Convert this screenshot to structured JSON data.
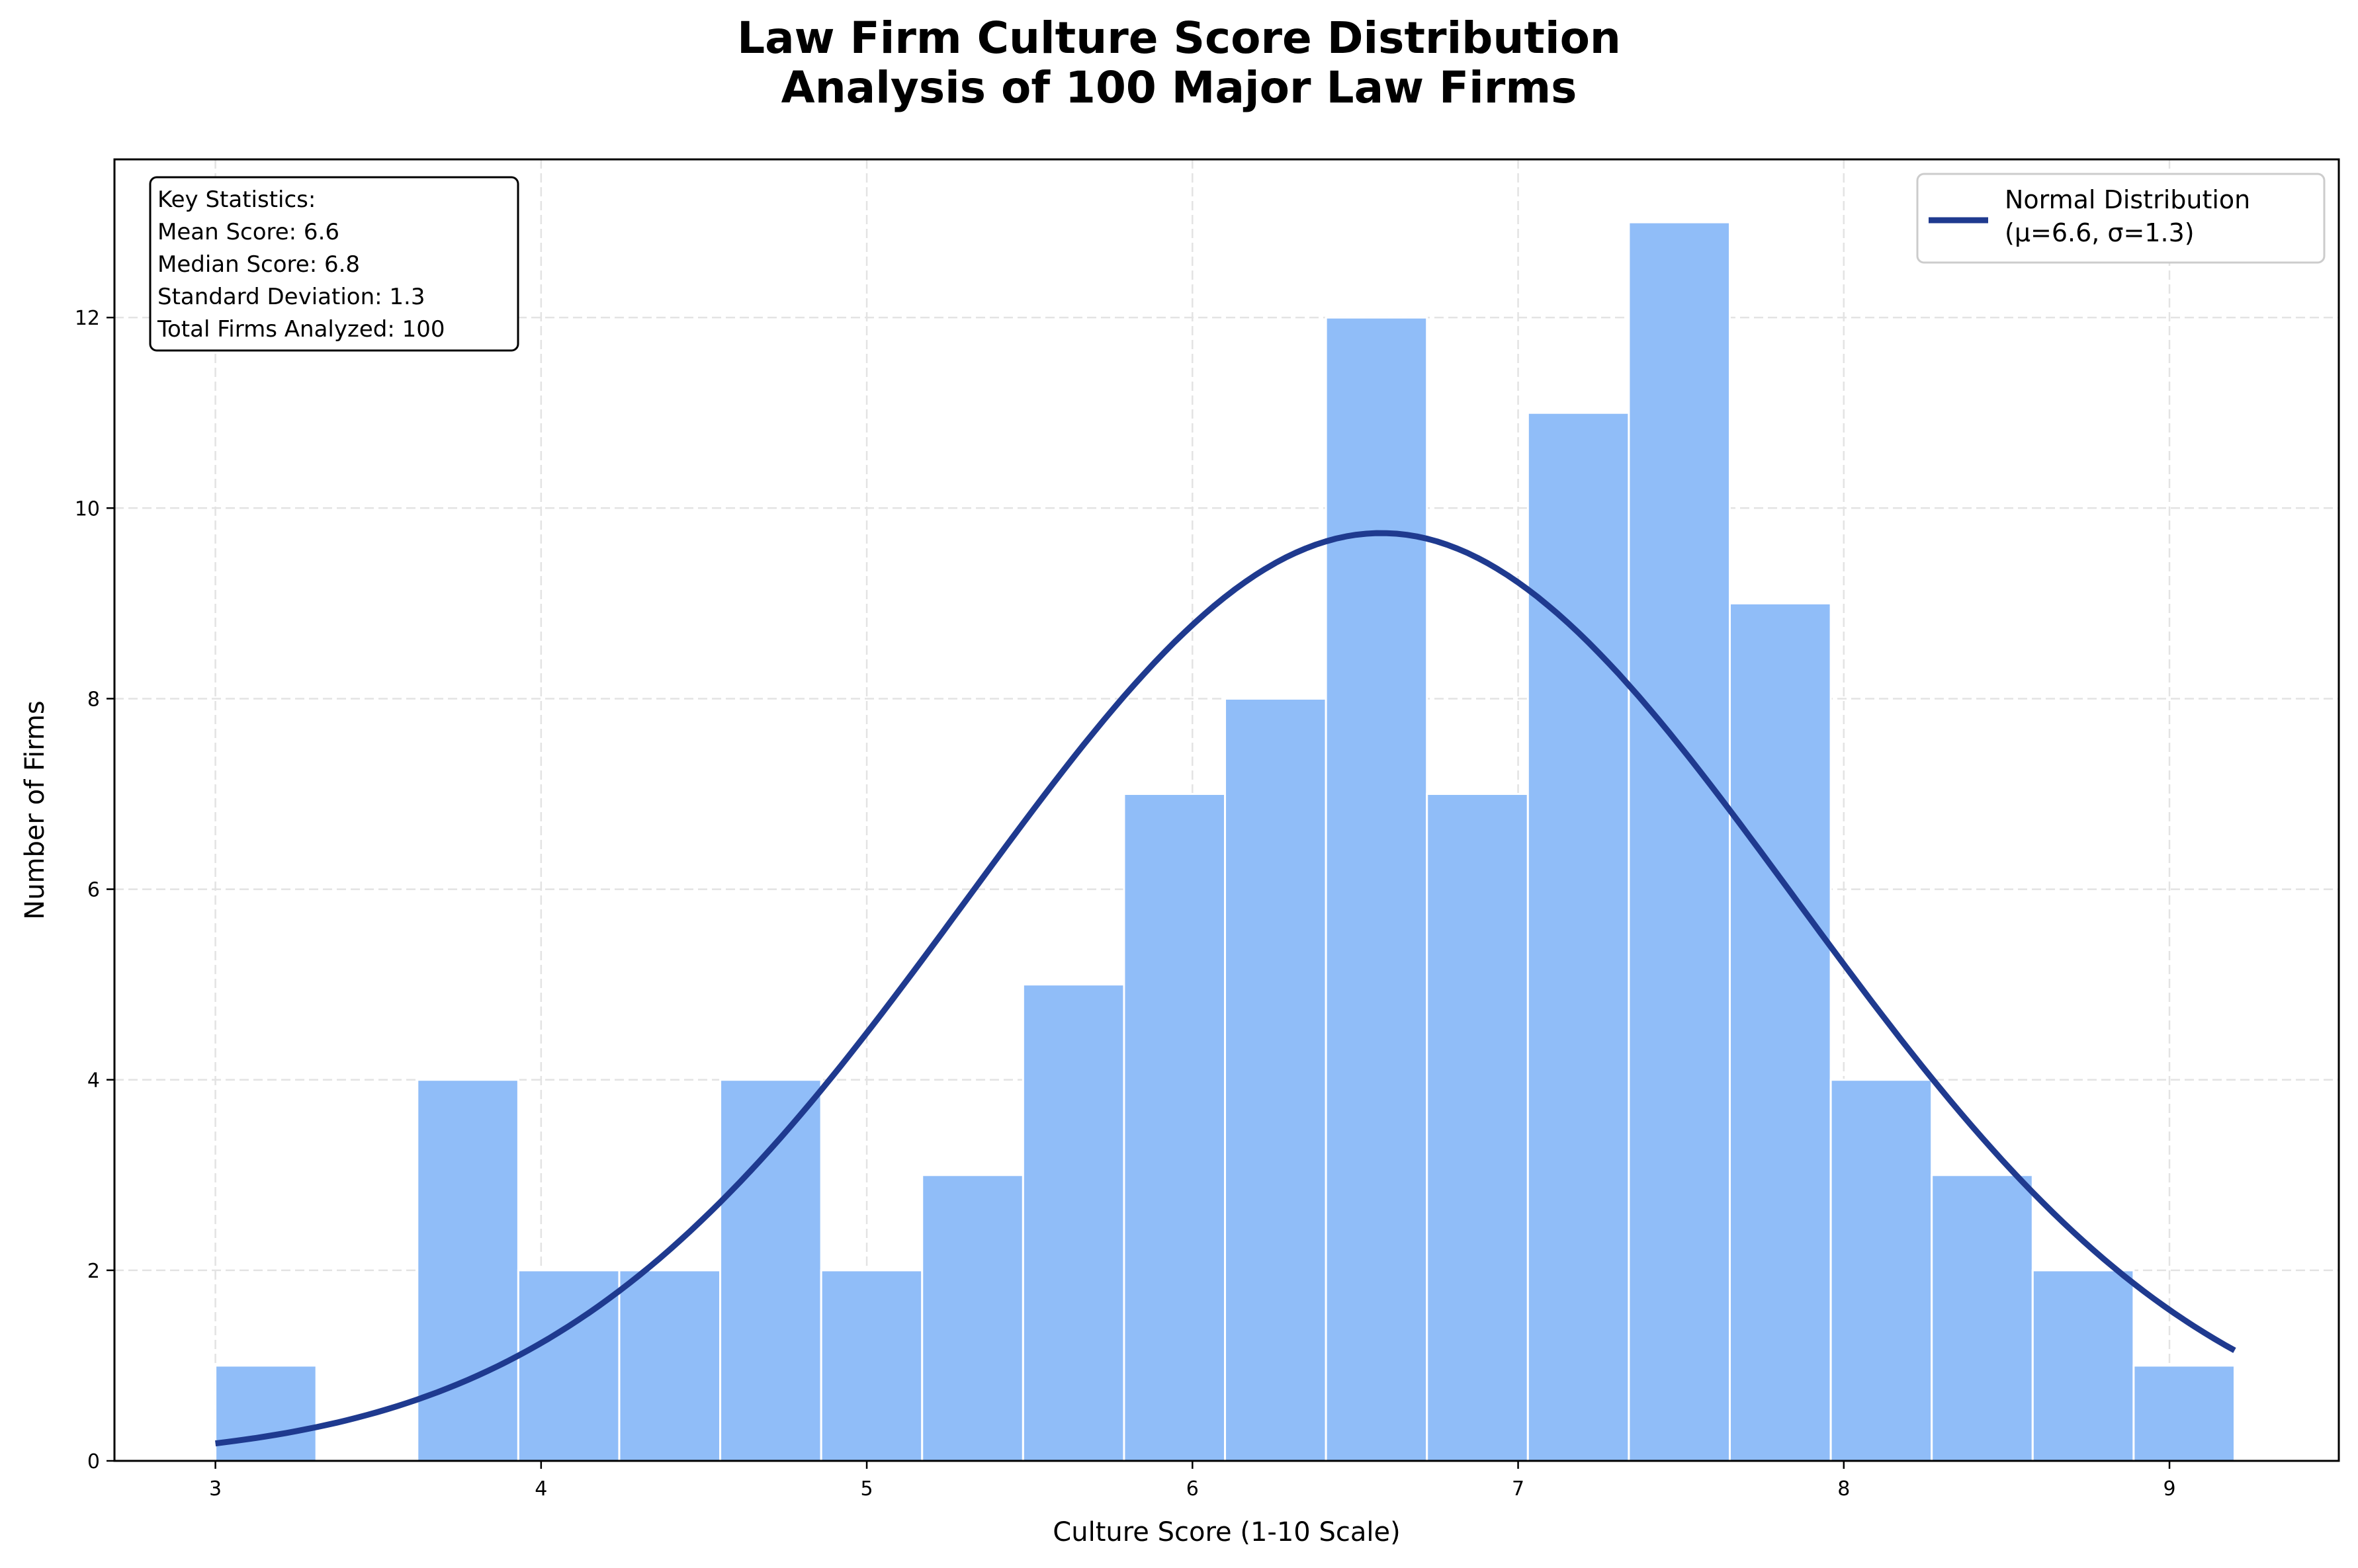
{
  "chart_data": {
    "type": "bar",
    "title": "Law Firm Culture Score Distribution",
    "subtitle": "Analysis of 100 Major Law Firms",
    "xlabel": "Culture Score (1-10 Scale)",
    "ylabel": "Number of Firms",
    "xlim": [
      2.69,
      9.52
    ],
    "ylim": [
      0,
      13.66
    ],
    "xticks": [
      3,
      4,
      5,
      6,
      7,
      8,
      9
    ],
    "yticks": [
      0,
      2,
      4,
      6,
      8,
      10,
      12
    ],
    "grid": true,
    "bins": {
      "start": 3.0,
      "end": 9.2,
      "count": 20
    },
    "values": [
      1,
      0,
      4,
      2,
      2,
      4,
      2,
      3,
      5,
      7,
      8,
      12,
      7,
      11,
      13,
      9,
      4,
      3,
      2,
      1
    ],
    "curve": {
      "name": "Normal Distribution\n(μ=6.6, σ=1.3)",
      "mu": 6.58,
      "sigma": 1.27,
      "n": 100,
      "x_range": [
        3.0,
        9.2
      ]
    },
    "legend": {
      "placement": "top-right",
      "line1": "Normal Distribution",
      "line2": "(μ=6.6, σ=1.3)"
    },
    "stats_box": [
      "Key Statistics:",
      "Mean Score: 6.6",
      "Median Score: 6.8",
      "Standard Deviation: 1.3",
      "Total Firms Analyzed: 100"
    ],
    "colors": {
      "bar": "#90bdf8",
      "bar_edge": "#ffffff",
      "curve": "#1f3a8f"
    }
  }
}
